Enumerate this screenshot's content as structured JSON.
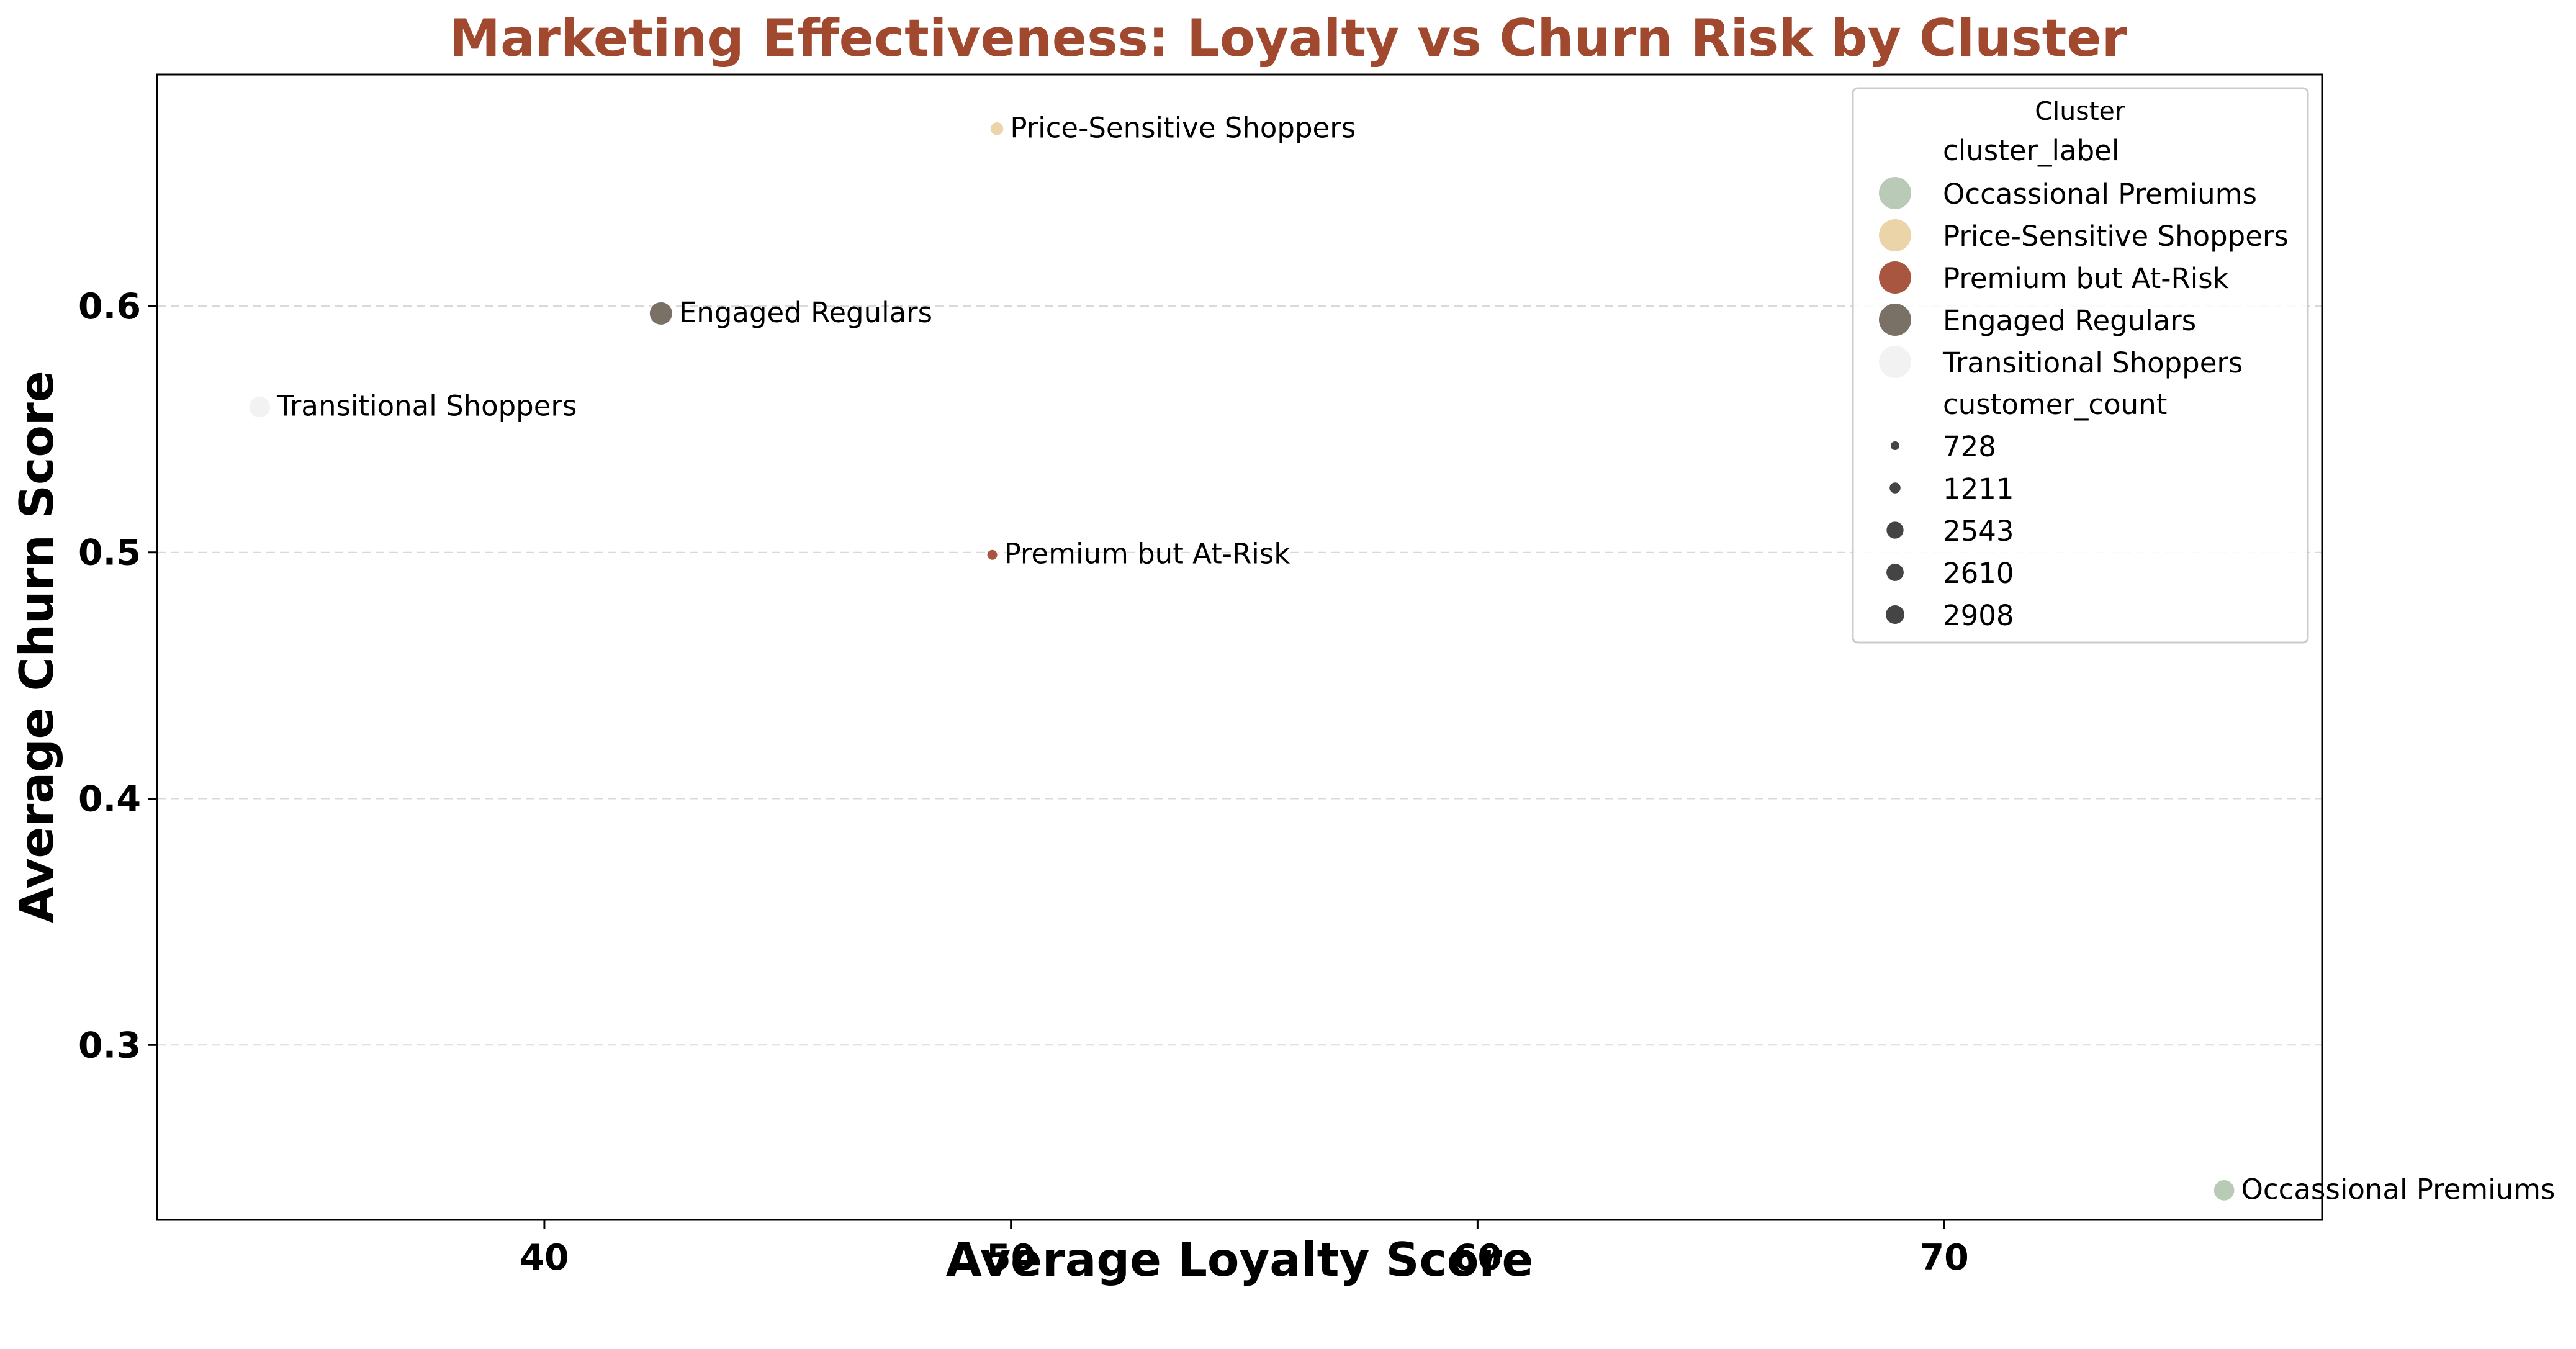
{
  "chart_data": {
    "type": "scatter",
    "title": "Marketing Effectiveness: Loyalty vs Churn Risk by Cluster",
    "xlabel": "Average Loyalty Score",
    "ylabel": "Average Churn Score",
    "xlim": [
      31.7,
      78.1
    ],
    "ylim": [
      0.229,
      0.694
    ],
    "x_ticks": [
      40,
      50,
      60,
      70
    ],
    "y_ticks": [
      0.3,
      0.4,
      0.5,
      0.6
    ],
    "grid": "y-dashed",
    "title_color": "#a0492f",
    "points": [
      {
        "label": "Occassional Premiums",
        "x": 76.0,
        "y": 0.241,
        "customer_count": 2543,
        "color": "#b9cbb6"
      },
      {
        "label": "Price-Sensitive Shoppers",
        "x": 49.7,
        "y": 0.672,
        "customer_count": 1211,
        "color": "#ebd5a8"
      },
      {
        "label": "Premium but At-Risk",
        "x": 49.6,
        "y": 0.499,
        "customer_count": 728,
        "color": "#a85640"
      },
      {
        "label": "Engaged Regulars",
        "x": 42.5,
        "y": 0.597,
        "customer_count": 2908,
        "color": "#7a7166"
      },
      {
        "label": "Transitional Shoppers",
        "x": 33.9,
        "y": 0.559,
        "customer_count": 2610,
        "color": "#f2f2f2"
      }
    ],
    "legend": {
      "placement": "upper-right",
      "title": "Cluster",
      "hue_header": "cluster_label",
      "hue_entries": [
        {
          "label": "Occassional Premiums",
          "color": "#b9cbb6"
        },
        {
          "label": "Price-Sensitive Shoppers",
          "color": "#ebd5a8"
        },
        {
          "label": "Premium but At-Risk",
          "color": "#a85640"
        },
        {
          "label": "Engaged Regulars",
          "color": "#7a7166"
        },
        {
          "label": "Transitional Shoppers",
          "color": "#f2f2f2"
        }
      ],
      "size_header": "customer_count",
      "size_entries": [
        {
          "label": "728",
          "value": 728
        },
        {
          "label": "1211",
          "value": 1211
        },
        {
          "label": "2543",
          "value": 2543
        },
        {
          "label": "2610",
          "value": 2610
        },
        {
          "label": "2908",
          "value": 2908
        }
      ],
      "size_marker_color": "#444444"
    }
  }
}
